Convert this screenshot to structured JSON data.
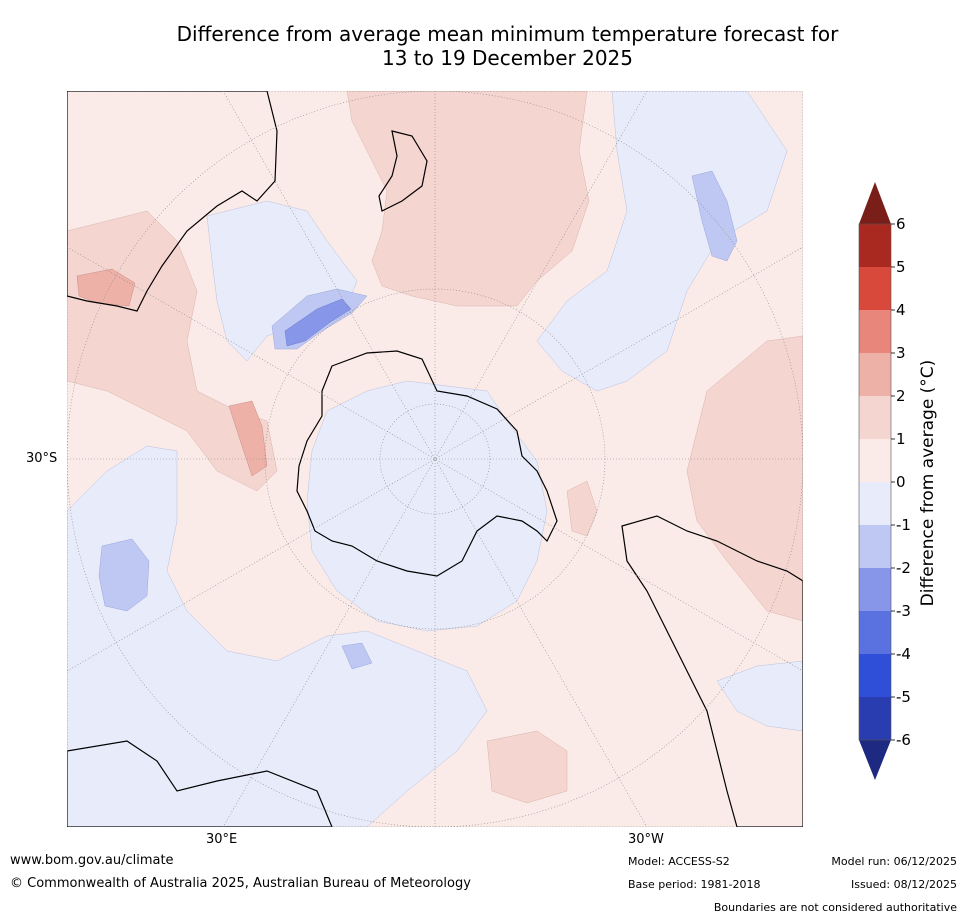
{
  "title": {
    "line1": "Difference from average mean minimum temperature forecast for",
    "line2": "13 to 19 December 2025"
  },
  "map": {
    "projection": "south-polar stereographic",
    "labels": {
      "lat": "30°S",
      "lon_east": "30°E",
      "lon_west": "30°W"
    }
  },
  "colorbar": {
    "label": "Difference from average (°C)",
    "ticks": [
      "6",
      "5",
      "4",
      "3",
      "2",
      "1",
      "0",
      "-1",
      "-2",
      "-3",
      "-4",
      "-5",
      "-6"
    ],
    "colors": {
      "above6": "#7a1e1a",
      "5to6": "#a9281f",
      "4to5": "#d8493b",
      "3to4": "#e8867b",
      "2to3": "#edb1a8",
      "1to2": "#f5d5d0",
      "0to1": "#fbebe8",
      "m1to0": "#e8ecfa",
      "m2tom1": "#bfc8f2",
      "m3tom2": "#8796e8",
      "m4tom3": "#5a72e0",
      "m5tom4": "#2f4fd8",
      "m6tom5": "#2a3db0",
      "below_m6": "#1e2a82"
    }
  },
  "footer": {
    "website": "www.bom.gov.au/climate",
    "copyright": "© Commonwealth of Australia 2025, Australian Bureau of Meteorology",
    "model": "Model: ACCESS-S2",
    "base_period": "Base period: 1981-2018",
    "model_run": "Model run: 06/12/2025",
    "issued": "Issued: 08/12/2025",
    "disclaimer": "Boundaries are not considered authoritative"
  }
}
